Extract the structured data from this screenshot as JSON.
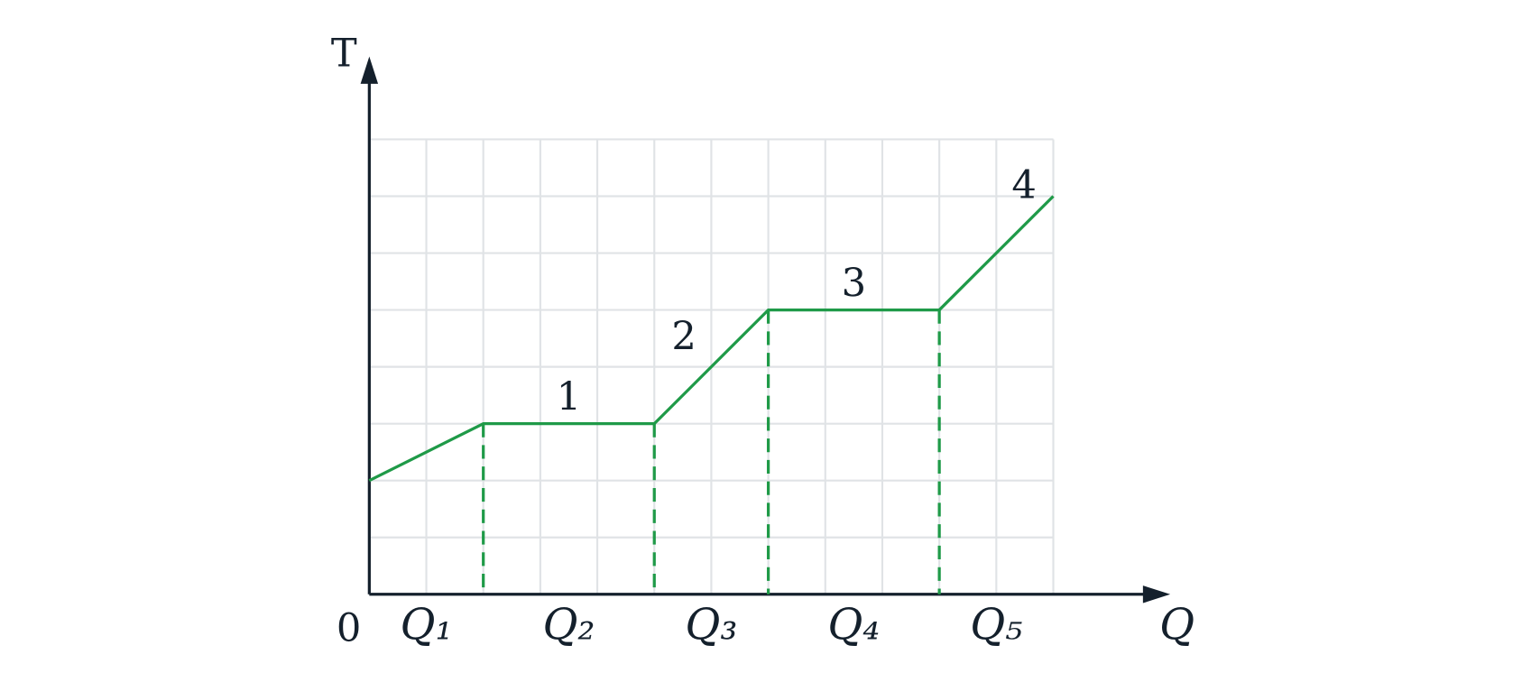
{
  "chart_data": {
    "type": "line",
    "y_label": "T",
    "x_label": "Q",
    "origin_label": "0",
    "x": [
      0,
      2,
      5,
      7,
      10,
      12
    ],
    "series": [
      {
        "color": "#1f9a48",
        "values": [
          2,
          3,
          3,
          5,
          5,
          7
        ]
      }
    ],
    "xlim": [
      0,
      12
    ],
    "ylim": [
      0,
      8
    ],
    "grid": true,
    "interval_labels": [
      "Q₁",
      "Q₂",
      "Q₃",
      "Q₄",
      "Q₅"
    ],
    "segment_labels": [
      "1",
      "2",
      "3",
      "4"
    ]
  }
}
